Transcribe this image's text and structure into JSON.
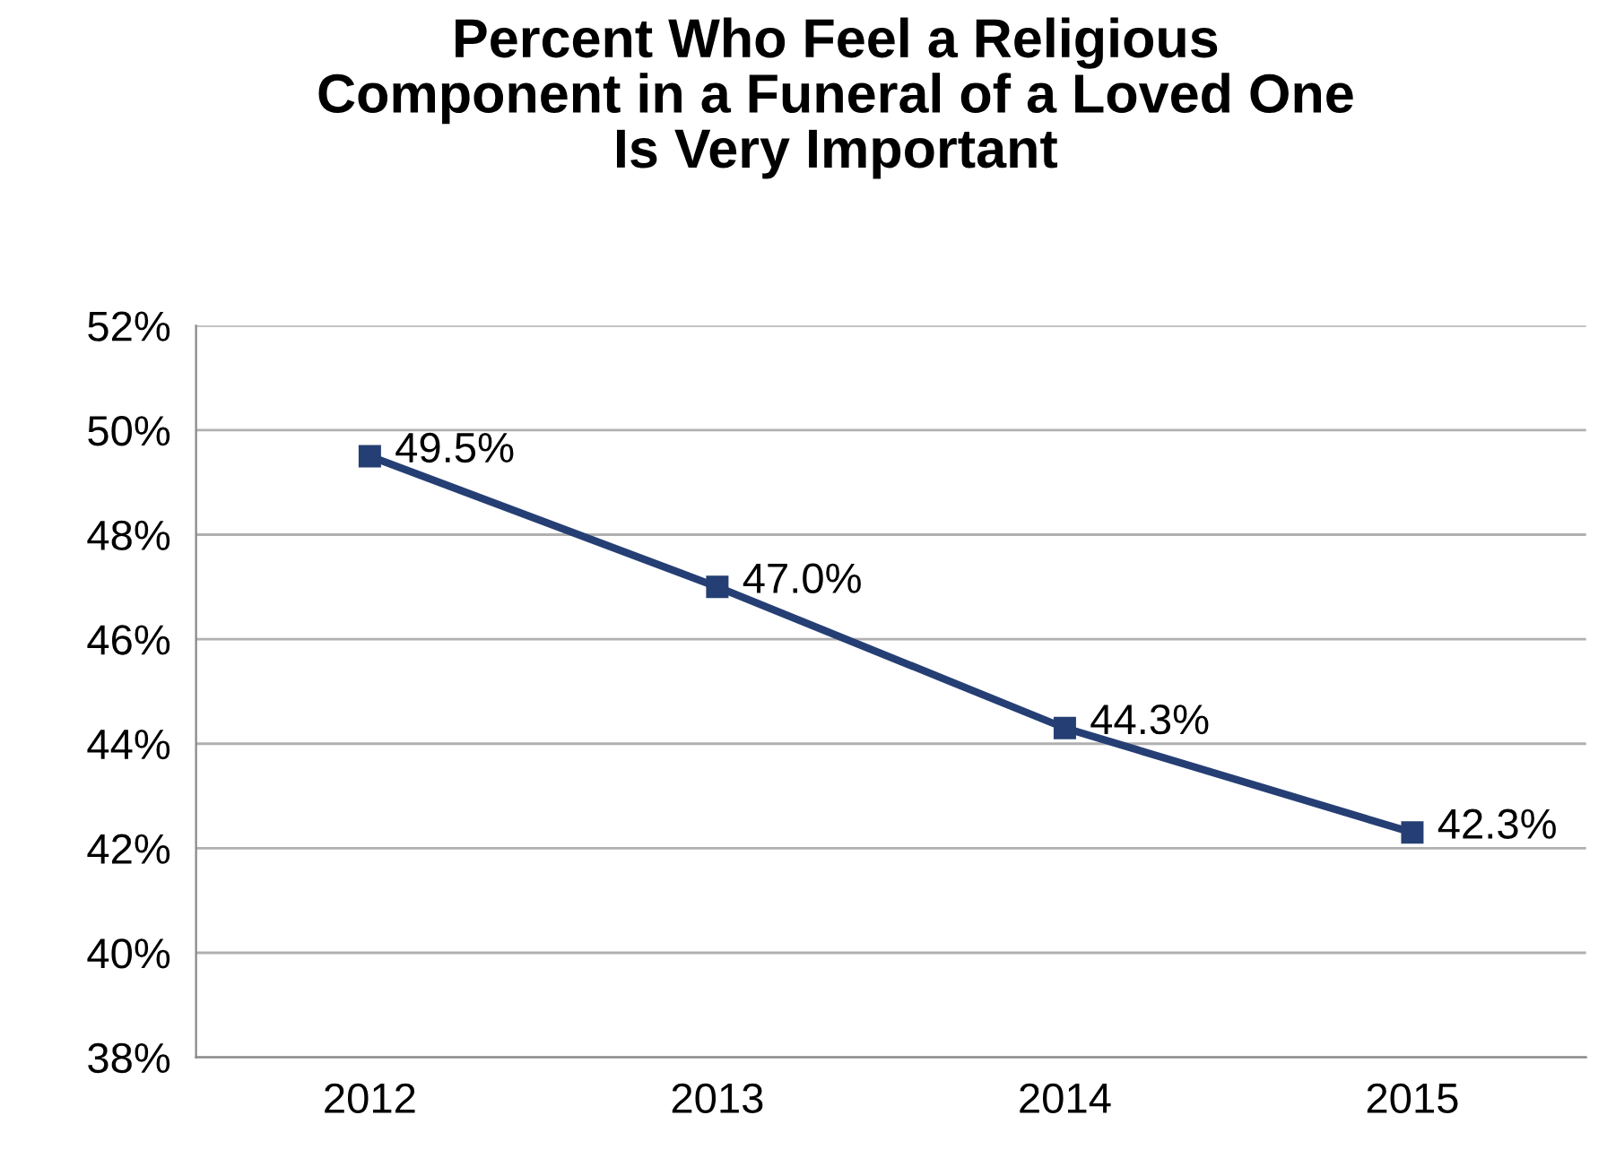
{
  "chart_data": {
    "type": "line",
    "title": "Percent Who Feel a Religious\nComponent in a Funeral of a Loved One\nIs Very Important",
    "categories": [
      "2012",
      "2013",
      "2014",
      "2015"
    ],
    "series": [
      {
        "color": "#253f74",
        "values": [
          49.5,
          47.0,
          44.3,
          42.3
        ],
        "value_labels": [
          "49.5%",
          "47.0%",
          "44.3%",
          "42.3%"
        ]
      }
    ],
    "ylim": [
      38,
      52
    ],
    "yticks": [
      {
        "value": 38,
        "label": "38%"
      },
      {
        "value": 40,
        "label": "40%"
      },
      {
        "value": 42,
        "label": "42%"
      },
      {
        "value": 44,
        "label": "44%"
      },
      {
        "value": 46,
        "label": "46%"
      },
      {
        "value": 48,
        "label": "48%"
      },
      {
        "value": 50,
        "label": "50%"
      },
      {
        "value": 52,
        "label": "52%"
      }
    ],
    "grid": "y",
    "legend": false,
    "marker": "square",
    "line_style": "solid"
  }
}
